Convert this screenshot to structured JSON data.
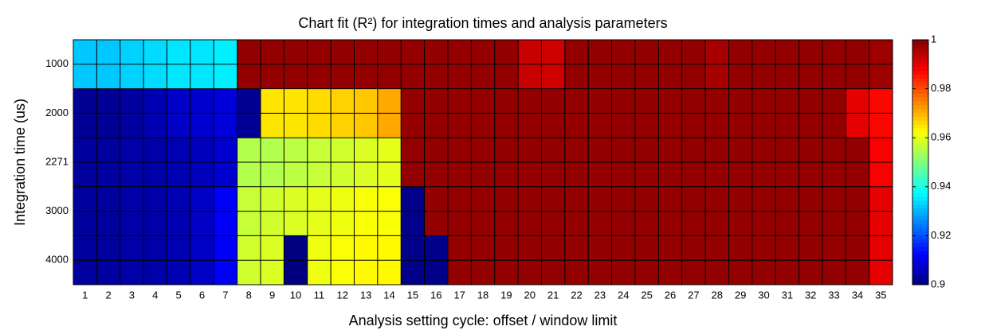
{
  "chart_data": {
    "type": "heatmap",
    "title": "Chart fit (R²) for integration times and analysis parameters",
    "x_label": "Analysis setting cycle: offset / window limit",
    "y_label": "Integration time (us)",
    "categories": [
      "1",
      "2",
      "3",
      "4",
      "5",
      "6",
      "7",
      "8",
      "9",
      "10",
      "11",
      "12",
      "13",
      "14",
      "15",
      "16",
      "17",
      "18",
      "19",
      "20",
      "21",
      "22",
      "23",
      "24",
      "25",
      "26",
      "27",
      "28",
      "29",
      "30",
      "31",
      "32",
      "33",
      "34",
      "35"
    ],
    "rows": [
      "1000",
      "2000",
      "2271",
      "3000",
      "4000"
    ],
    "z": [
      [
        0.932,
        0.932,
        0.933,
        0.934,
        0.935,
        0.935,
        0.936,
        0.998,
        0.998,
        0.998,
        0.998,
        0.998,
        0.998,
        0.998,
        0.998,
        0.998,
        0.998,
        0.998,
        0.998,
        0.993,
        0.992,
        0.998,
        0.998,
        0.998,
        0.998,
        0.998,
        0.998,
        0.996,
        0.998,
        0.998,
        0.998,
        0.998,
        0.998,
        0.998,
        0.997
      ],
      [
        0.902,
        0.902,
        0.903,
        0.905,
        0.907,
        0.908,
        0.909,
        0.902,
        0.965,
        0.965,
        0.966,
        0.967,
        0.968,
        0.971,
        0.998,
        0.998,
        0.998,
        0.998,
        0.998,
        0.998,
        0.998,
        0.998,
        0.998,
        0.998,
        0.998,
        0.998,
        0.998,
        0.998,
        0.998,
        0.998,
        0.998,
        0.998,
        0.998,
        0.99,
        0.987
      ],
      [
        0.903,
        0.903,
        0.904,
        0.904,
        0.905,
        0.906,
        0.908,
        0.955,
        0.955,
        0.956,
        0.957,
        0.958,
        0.959,
        0.96,
        0.998,
        0.998,
        0.998,
        0.998,
        0.998,
        0.998,
        0.998,
        0.998,
        0.998,
        0.998,
        0.998,
        0.998,
        0.998,
        0.998,
        0.998,
        0.998,
        0.998,
        0.998,
        0.998,
        0.998,
        0.988
      ],
      [
        0.903,
        0.903,
        0.904,
        0.904,
        0.905,
        0.907,
        0.912,
        0.957,
        0.958,
        0.959,
        0.96,
        0.961,
        0.962,
        0.962,
        0.901,
        0.998,
        0.998,
        0.998,
        0.998,
        0.998,
        0.998,
        0.998,
        0.998,
        0.998,
        0.998,
        0.998,
        0.998,
        0.998,
        0.998,
        0.998,
        0.998,
        0.998,
        0.998,
        0.998,
        0.99
      ],
      [
        0.903,
        0.903,
        0.904,
        0.904,
        0.905,
        0.907,
        0.912,
        0.958,
        0.959,
        0.9,
        0.961,
        0.962,
        0.963,
        0.963,
        0.901,
        0.901,
        0.998,
        0.998,
        0.998,
        0.998,
        0.998,
        0.998,
        0.998,
        0.998,
        0.998,
        0.998,
        0.998,
        0.998,
        0.998,
        0.998,
        0.998,
        0.998,
        0.998,
        0.998,
        0.99
      ]
    ],
    "colormap": "jet",
    "clim": [
      0.9,
      1
    ],
    "cticks": [
      0.9,
      0.92,
      0.94,
      0.96,
      0.98,
      1
    ]
  }
}
